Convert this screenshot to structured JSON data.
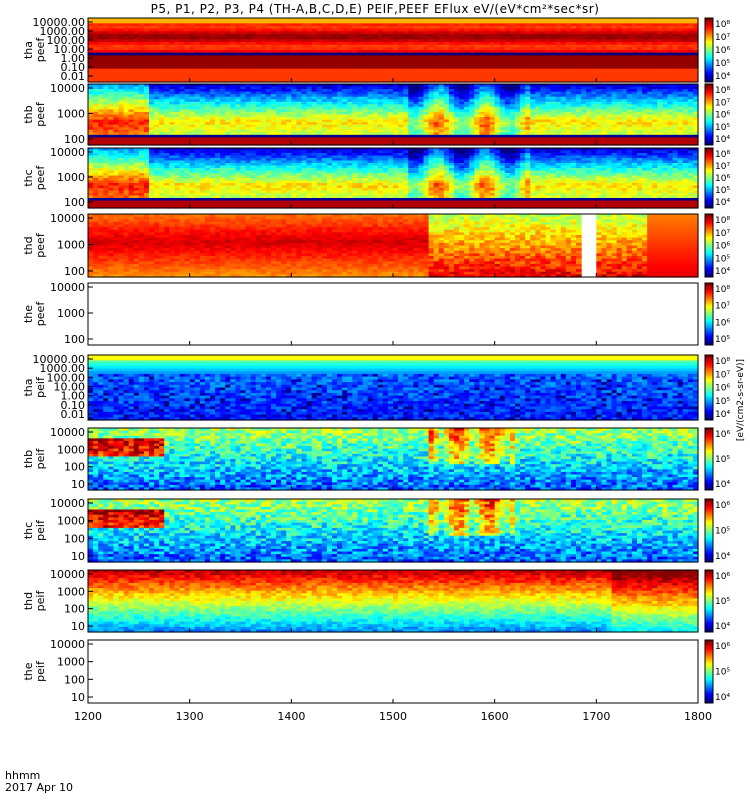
{
  "chart_data": {
    "type": "heatmap",
    "title": "P5, P1, P2, P3, P4 (TH-A,B,C,D,E) PEIF,PEEF EFlux eV/(eV*cm²*sec*sr)",
    "x_label_line1": "hhmm",
    "x_label_line2": "2017 Apr 10",
    "x_ticks": [
      "1200",
      "1300",
      "1400",
      "1500",
      "1600",
      "1700",
      "1800"
    ],
    "x_range": [
      1200,
      1800
    ],
    "colorbar_label": "[eV/(cm2-s-sr-eV)]",
    "panels": [
      {
        "label": [
          "tha",
          "peef"
        ],
        "yticks": [
          "10000.00",
          "1000.00",
          "100.00",
          "10.00",
          "1.00",
          "0.10",
          "0.01"
        ],
        "cbar_ticks": [
          "10⁸",
          "10⁷",
          "10⁶",
          "10⁵",
          "10⁴"
        ],
        "pattern": "bands"
      },
      {
        "label": [
          "thb",
          "peef"
        ],
        "yticks": [
          "10000",
          "1000",
          "100"
        ],
        "cbar_ticks": [
          "10⁸",
          "10⁷",
          "10⁶",
          "10⁵",
          "10⁴"
        ],
        "pattern": "mixed"
      },
      {
        "label": [
          "thc",
          "peef"
        ],
        "yticks": [
          "10000",
          "1000",
          "100"
        ],
        "cbar_ticks": [
          "10⁸",
          "10⁷",
          "10⁶",
          "10⁵",
          "10⁴"
        ],
        "pattern": "mixed"
      },
      {
        "label": [
          "thd",
          "peef"
        ],
        "yticks": [
          "10000",
          "1000",
          "100"
        ],
        "cbar_ticks": [
          "10⁸",
          "10⁷",
          "10⁶",
          "10⁵",
          "10⁴"
        ],
        "pattern": "hot",
        "gap_hhmm": [
          1682,
          1698
        ]
      },
      {
        "label": [
          "the",
          "peef"
        ],
        "yticks": [
          "10000",
          "1000",
          "100"
        ],
        "cbar_ticks": [
          "10⁸",
          "10⁷",
          "10⁶",
          "10⁵"
        ],
        "pattern": "empty"
      },
      {
        "label": [
          "tha",
          "peif"
        ],
        "yticks": [
          "10000.00",
          "1000.00",
          "100.00",
          "10.00",
          "1.00",
          "0.10",
          "0.01"
        ],
        "cbar_ticks": [
          "10⁸",
          "10⁷",
          "10⁶",
          "10⁵",
          "10⁴"
        ],
        "pattern": "ionbands"
      },
      {
        "label": [
          "thb",
          "peif"
        ],
        "yticks": [
          "10000",
          "1000",
          "100",
          "10"
        ],
        "cbar_ticks": [
          "10⁶",
          "10⁵",
          "10⁴"
        ],
        "pattern": "speckle"
      },
      {
        "label": [
          "thc",
          "peif"
        ],
        "yticks": [
          "10000",
          "1000",
          "100",
          "10"
        ],
        "cbar_ticks": [
          "10⁶",
          "10⁵",
          "10⁴"
        ],
        "pattern": "speckle"
      },
      {
        "label": [
          "thd",
          "peif"
        ],
        "yticks": [
          "10000",
          "1000",
          "100",
          "10"
        ],
        "cbar_ticks": [
          "10⁶",
          "10⁵",
          "10⁴"
        ],
        "pattern": "gradient"
      },
      {
        "label": [
          "the",
          "peif"
        ],
        "yticks": [
          "10000",
          "1000",
          "100",
          "10"
        ],
        "cbar_ticks": [
          "10⁶",
          "10⁵",
          "10⁴"
        ],
        "pattern": "empty"
      }
    ]
  }
}
